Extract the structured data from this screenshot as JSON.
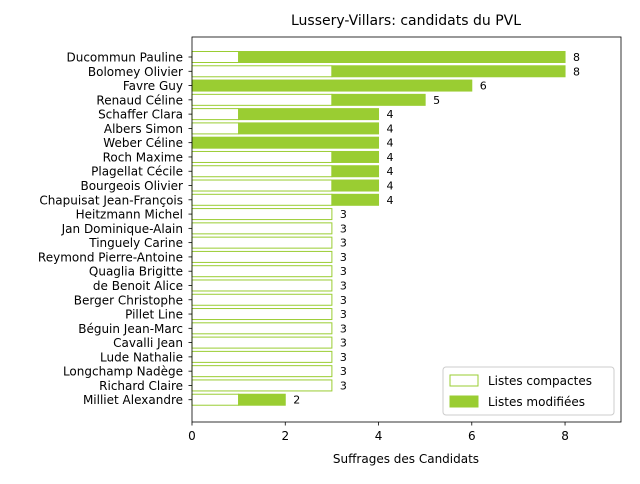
{
  "chart_data": {
    "type": "bar",
    "orientation": "horizontal",
    "stacked": true,
    "title": "Lussery-Villars: candidats du PVL",
    "xlabel": "Suffrages des Candidats",
    "ylabel": "",
    "xlim": [
      0,
      9.2
    ],
    "xticks": [
      0,
      2,
      4,
      6,
      8
    ],
    "grid": false,
    "legend_position": "lower-right",
    "categories": [
      "Ducommun Pauline",
      "Bolomey Olivier",
      "Favre Guy",
      "Renaud Céline",
      "Schaffer Clara",
      "Albers Simon",
      "Weber Céline",
      "Roch Maxime",
      "Plagellat Cécile",
      "Bourgeois Olivier",
      "Chapuisat Jean-François",
      "Heitzmann Michel",
      "Jan Dominique-Alain",
      "Tinguely Carine",
      "Reymond Pierre-Antoine",
      "Quaglia Brigitte",
      "de Benoit Alice",
      "Berger Christophe",
      "Pillet Line",
      "Béguin Jean-Marc",
      "Cavalli Jean",
      "Lude Nathalie",
      "Longchamp Nadège",
      "Richard Claire",
      "Milliet Alexandre"
    ],
    "series": [
      {
        "name": "Listes compactes",
        "color": "#9acd32",
        "fill": "#ffffff",
        "values": [
          1,
          3,
          0,
          3,
          1,
          1,
          0,
          3,
          3,
          3,
          3,
          3,
          3,
          3,
          3,
          3,
          3,
          3,
          3,
          3,
          3,
          3,
          3,
          3,
          1
        ]
      },
      {
        "name": "Listes modifiées",
        "color": "#9acd32",
        "fill": "#9acd32",
        "values": [
          7,
          5,
          6,
          2,
          3,
          3,
          4,
          1,
          1,
          1,
          1,
          0,
          0,
          0,
          0,
          0,
          0,
          0,
          0,
          0,
          0,
          0,
          0,
          0,
          1
        ]
      }
    ],
    "totals": [
      8,
      8,
      6,
      5,
      4,
      4,
      4,
      4,
      4,
      4,
      4,
      3,
      3,
      3,
      3,
      3,
      3,
      3,
      3,
      3,
      3,
      3,
      3,
      3,
      2
    ]
  }
}
